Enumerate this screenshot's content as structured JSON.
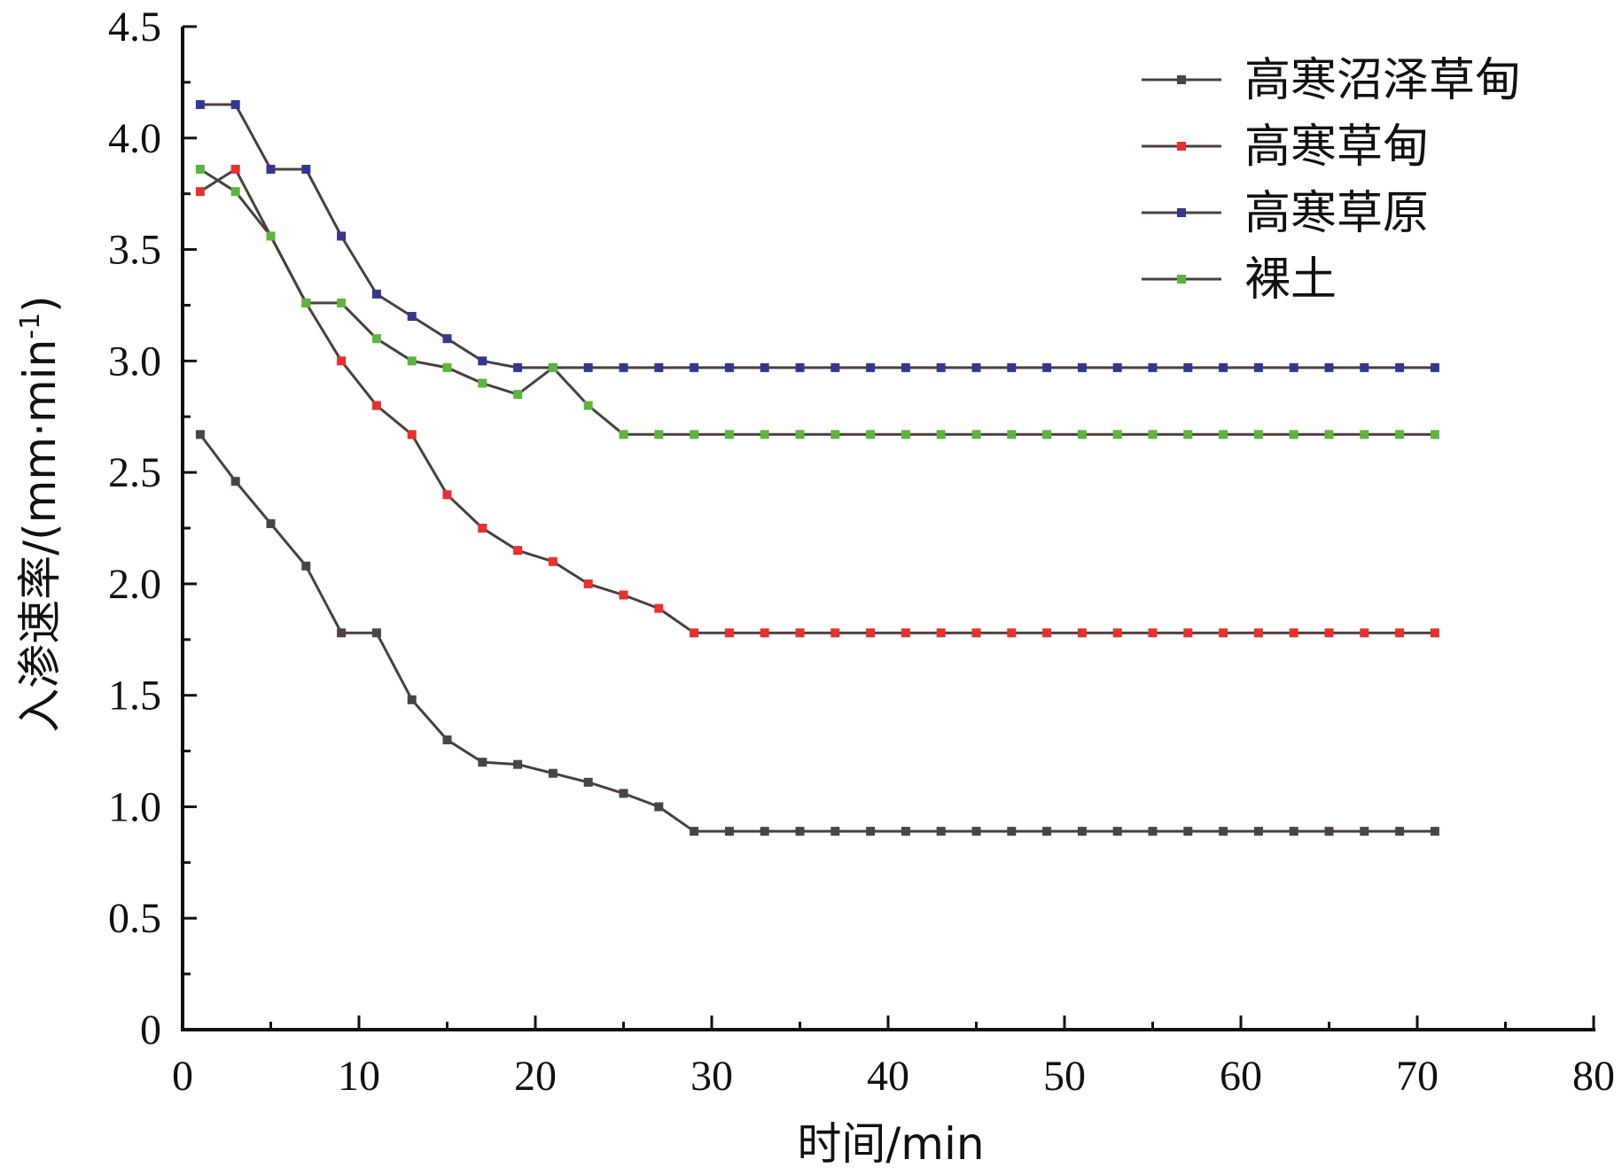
{
  "chart_data": {
    "type": "line",
    "xlabel": "时间/min",
    "ylabel": "入渗速率/(mm·min",
    "ylabel_sup": "-1",
    "ylabel_close": ")",
    "xlim": [
      0,
      80
    ],
    "ylim": [
      0,
      4.5
    ],
    "xticks": [
      0,
      10,
      20,
      30,
      40,
      50,
      60,
      70,
      80
    ],
    "yticks": [
      0,
      0.5,
      1.0,
      1.5,
      2.0,
      2.5,
      3.0,
      3.5,
      4.0,
      4.5
    ],
    "xtick_labels": [
      "0",
      "10",
      "20",
      "30",
      "40",
      "50",
      "60",
      "70",
      "80"
    ],
    "ytick_labels": [
      "0",
      "0.5",
      "1.0",
      "1.5",
      "2.0",
      "2.5",
      "3.0",
      "3.5",
      "4.0",
      "4.5"
    ],
    "grid": false,
    "legend_position": "top-right",
    "x": [
      1,
      3,
      5,
      7,
      9,
      11,
      13,
      15,
      17,
      19,
      21,
      23,
      25,
      27,
      29,
      31,
      33,
      35,
      37,
      39,
      41,
      43,
      45,
      47,
      49,
      51,
      53,
      55,
      57,
      59,
      61,
      63,
      65,
      67,
      69,
      71
    ],
    "series": [
      {
        "name": "高寒沼泽草甸",
        "line_color": "#4a3f3f",
        "marker_color": "#4a4545",
        "values": [
          2.67,
          2.46,
          2.27,
          2.08,
          1.78,
          1.78,
          1.48,
          1.3,
          1.2,
          1.19,
          1.15,
          1.11,
          1.06,
          1.0,
          0.89,
          0.89,
          0.89,
          0.89,
          0.89,
          0.89,
          0.89,
          0.89,
          0.89,
          0.89,
          0.89,
          0.89,
          0.89,
          0.89,
          0.89,
          0.89,
          0.89,
          0.89,
          0.89,
          0.89,
          0.89,
          0.89
        ]
      },
      {
        "name": "高寒草甸",
        "line_color": "#4a3f3f",
        "marker_color": "#e8302c",
        "values": [
          3.76,
          3.86,
          3.56,
          3.26,
          3.0,
          2.8,
          2.67,
          2.4,
          2.25,
          2.15,
          2.1,
          2.0,
          1.95,
          1.89,
          1.78,
          1.78,
          1.78,
          1.78,
          1.78,
          1.78,
          1.78,
          1.78,
          1.78,
          1.78,
          1.78,
          1.78,
          1.78,
          1.78,
          1.78,
          1.78,
          1.78,
          1.78,
          1.78,
          1.78,
          1.78,
          1.78
        ]
      },
      {
        "name": "高寒草原",
        "line_color": "#4a3f3f",
        "marker_color": "#34378f",
        "values": [
          4.15,
          4.15,
          3.86,
          3.86,
          3.56,
          3.3,
          3.2,
          3.1,
          3.0,
          2.97,
          2.97,
          2.97,
          2.97,
          2.97,
          2.97,
          2.97,
          2.97,
          2.97,
          2.97,
          2.97,
          2.97,
          2.97,
          2.97,
          2.97,
          2.97,
          2.97,
          2.97,
          2.97,
          2.97,
          2.97,
          2.97,
          2.97,
          2.97,
          2.97,
          2.97,
          2.97
        ]
      },
      {
        "name": "裸土",
        "line_color": "#4a3f3f",
        "marker_color": "#5cb53c",
        "values": [
          3.86,
          3.76,
          3.56,
          3.26,
          3.26,
          3.1,
          3.0,
          2.97,
          2.9,
          2.85,
          2.97,
          2.8,
          2.67,
          2.67,
          2.67,
          2.67,
          2.67,
          2.67,
          2.67,
          2.67,
          2.67,
          2.67,
          2.67,
          2.67,
          2.67,
          2.67,
          2.67,
          2.67,
          2.67,
          2.67,
          2.67,
          2.67,
          2.67,
          2.67,
          2.67,
          2.67
        ]
      }
    ]
  }
}
